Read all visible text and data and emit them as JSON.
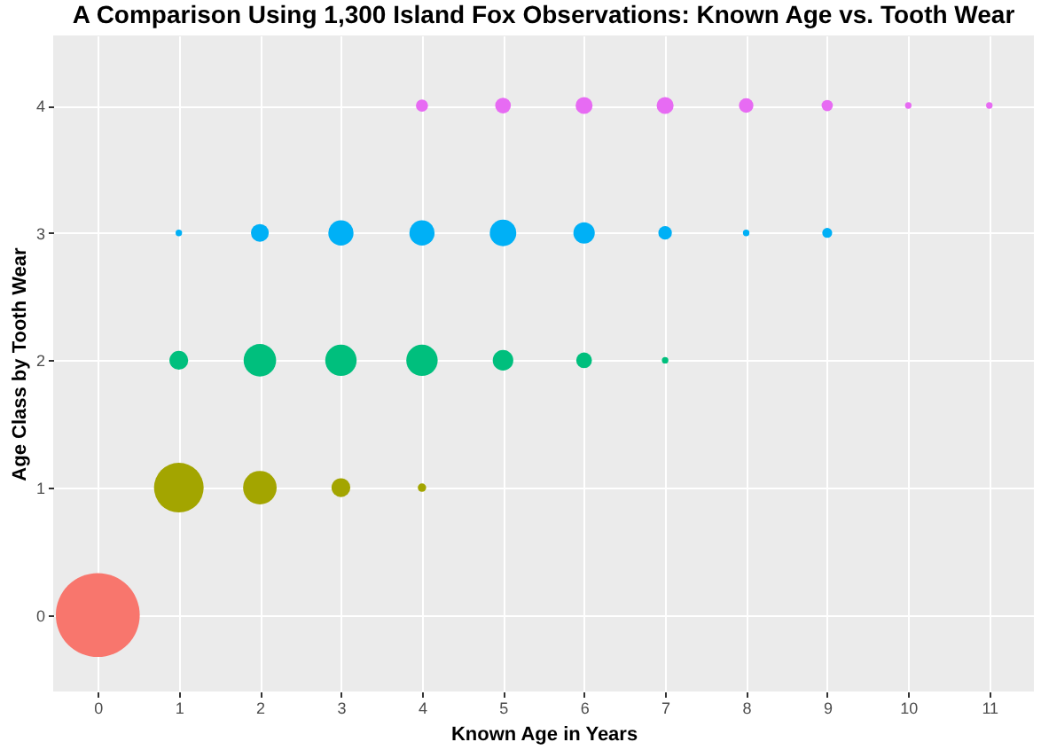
{
  "chart_data": {
    "type": "bubble",
    "title": "A Comparison Using 1,300 Island Fox Observations: Known Age vs. Tooth Wear",
    "xlabel": "Known Age in Years",
    "ylabel": "Age Class by Tooth Wear",
    "xlim": [
      -0.55,
      11.55
    ],
    "ylim": [
      -0.6,
      4.55
    ],
    "xticks": [
      0,
      1,
      2,
      3,
      4,
      5,
      6,
      7,
      8,
      9,
      10,
      11
    ],
    "yticks": [
      0,
      1,
      2,
      3,
      4
    ],
    "grid": true,
    "marker": "circle",
    "series": [
      {
        "color": "#f8766d",
        "x": [
          0
        ],
        "values": [
          0
        ],
        "sizes": [
          1
        ]
      },
      {
        "color": "#a3a500",
        "x": [
          1,
          2,
          3,
          4
        ],
        "values": [
          1,
          1,
          1,
          1
        ],
        "sizes": [
          0.35,
          0.16,
          0.05,
          0.01
        ]
      },
      {
        "color": "#00bf7d",
        "x": [
          1,
          2,
          3,
          4,
          5,
          6,
          7
        ],
        "values": [
          2,
          2,
          2,
          2,
          2,
          2,
          2
        ],
        "sizes": [
          0.05,
          0.15,
          0.14,
          0.14,
          0.06,
          0.035,
          0.006
        ]
      },
      {
        "color": "#00b0f6",
        "x": [
          1,
          2,
          3,
          4,
          5,
          6,
          7,
          8,
          9
        ],
        "values": [
          3,
          3,
          3,
          3,
          3,
          3,
          3,
          3,
          3
        ],
        "sizes": [
          0.006,
          0.045,
          0.09,
          0.09,
          0.1,
          0.065,
          0.026,
          0.006,
          0.014
        ]
      },
      {
        "color": "#e76bf3",
        "x": [
          4,
          5,
          6,
          7,
          8,
          9,
          10,
          11
        ],
        "values": [
          4,
          4,
          4,
          4,
          4,
          4,
          4,
          4
        ],
        "sizes": [
          0.021,
          0.035,
          0.041,
          0.041,
          0.03,
          0.018,
          0.006,
          0.006
        ]
      }
    ]
  }
}
